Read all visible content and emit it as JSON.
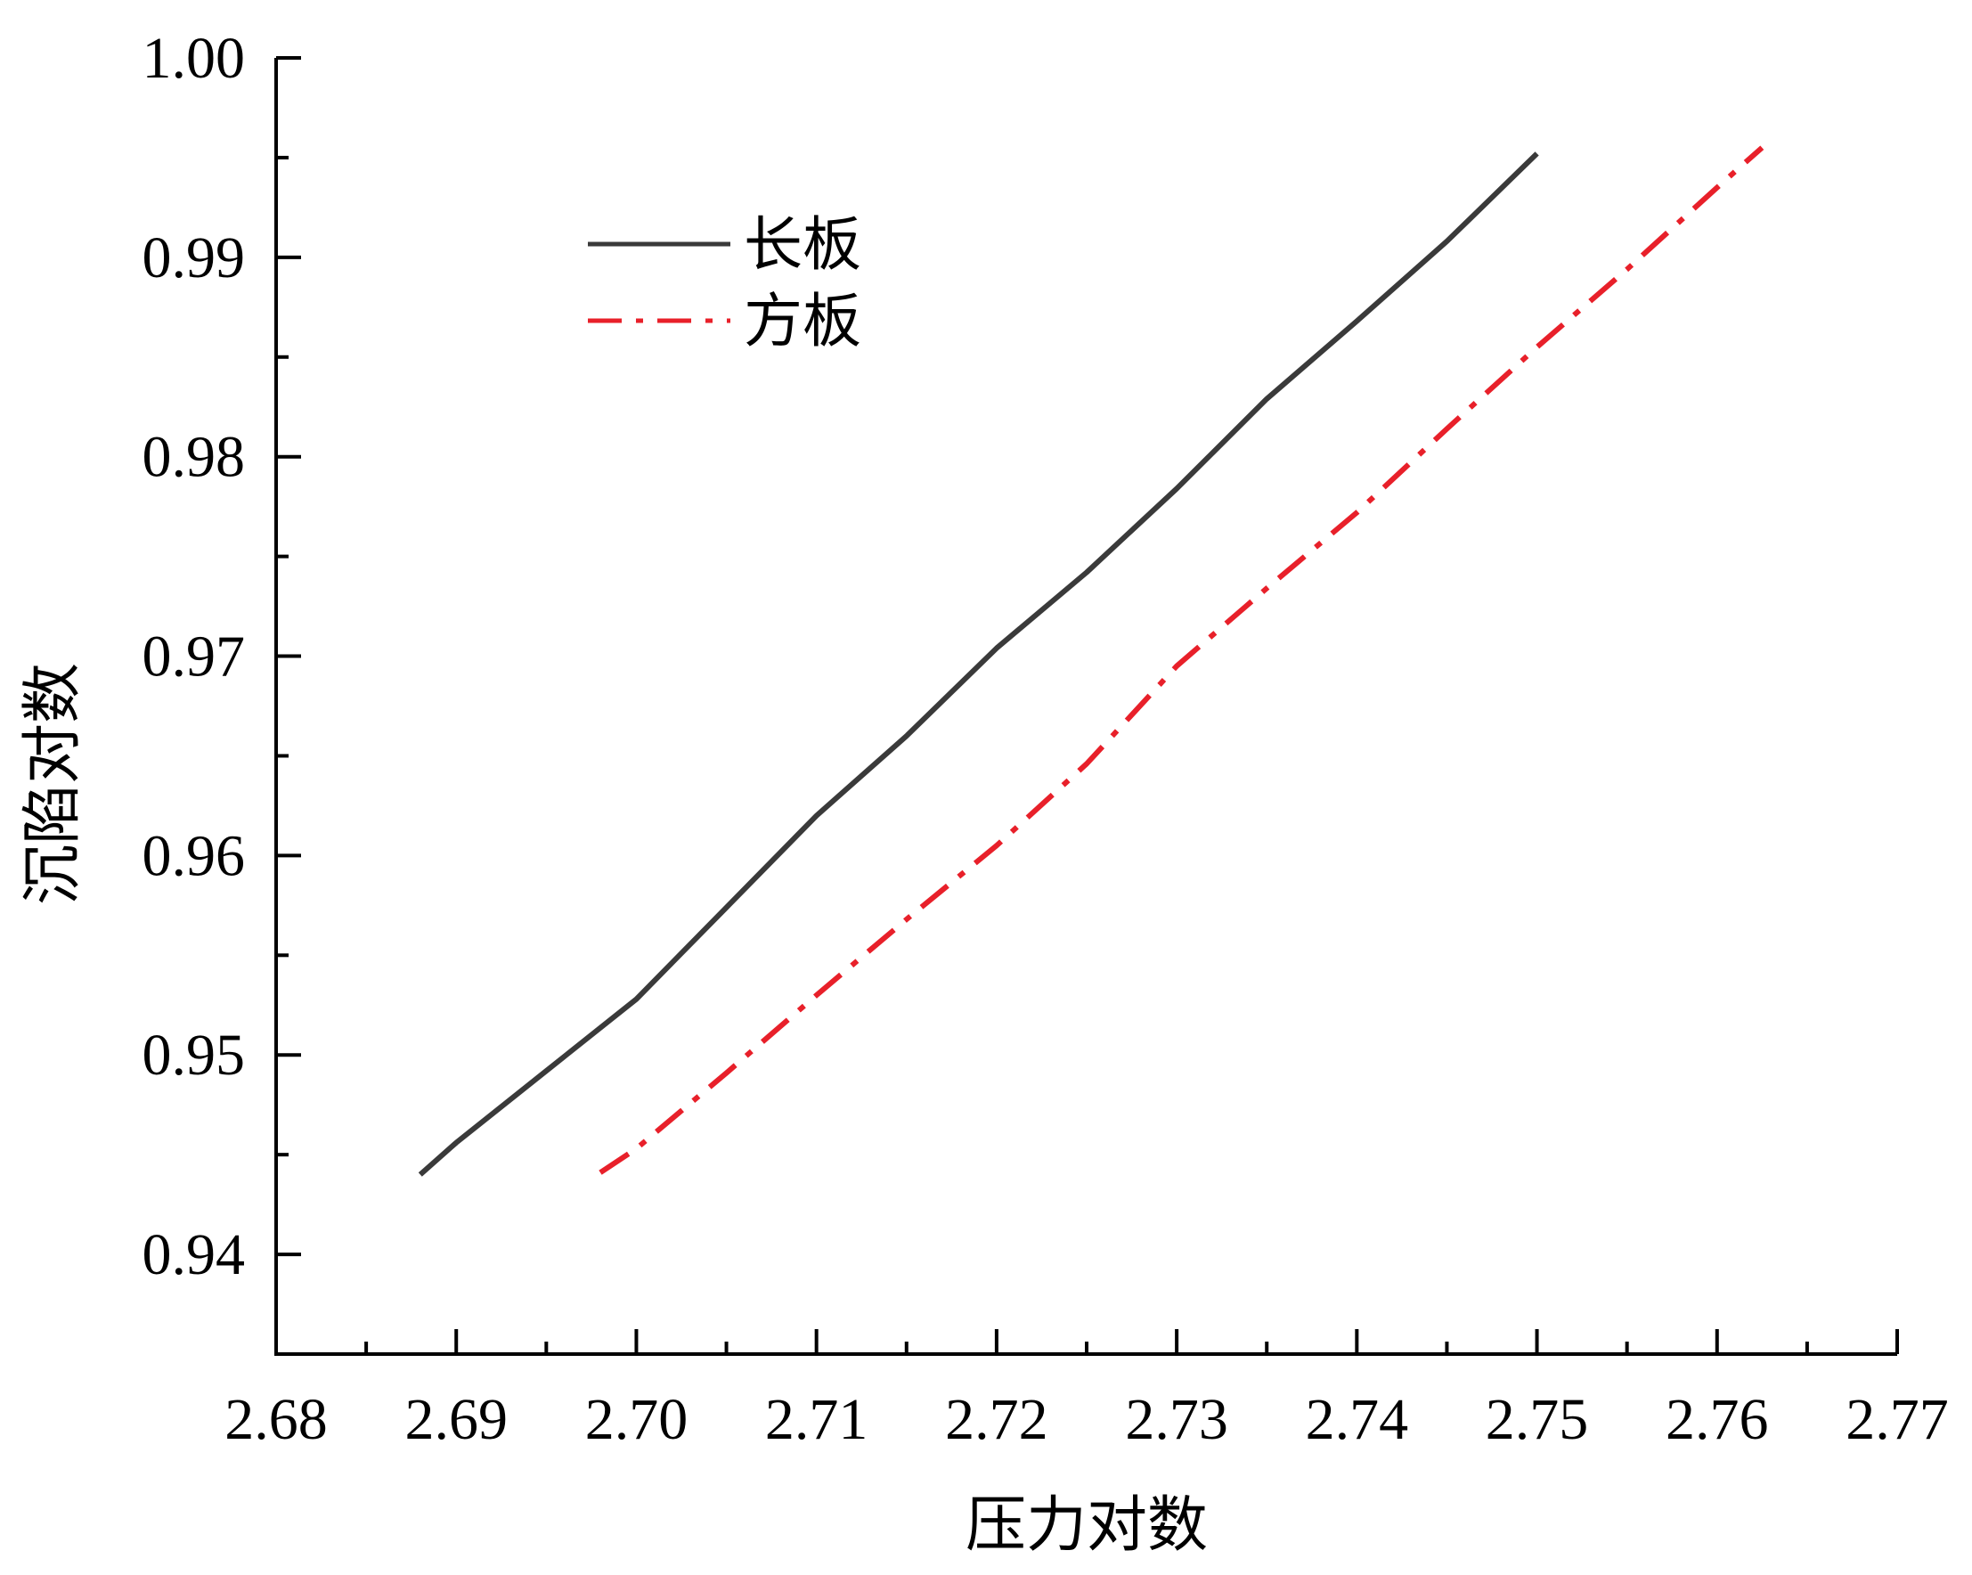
{
  "chart_data": {
    "type": "line",
    "title": "",
    "xlabel": "压力对数",
    "ylabel": "沉陷对数",
    "xlim": [
      2.68,
      2.77
    ],
    "ylim": [
      0.935,
      1.0
    ],
    "x_ticks": [
      "2.68",
      "2.69",
      "2.70",
      "2.71",
      "2.72",
      "2.73",
      "2.74",
      "2.75",
      "2.76",
      "2.77"
    ],
    "y_ticks": [
      "0.94",
      "0.95",
      "0.96",
      "0.97",
      "0.98",
      "0.99",
      "1.00"
    ],
    "grid": false,
    "legend_position": "top-left",
    "series": [
      {
        "name": "长板",
        "color": "#3a3a3a",
        "style": "solid",
        "x": [
          2.688,
          2.69,
          2.695,
          2.7,
          2.705,
          2.71,
          2.715,
          2.72,
          2.725,
          2.73,
          2.735,
          2.74,
          2.745,
          2.75
        ],
        "y": [
          0.944,
          0.9456,
          0.9492,
          0.9528,
          0.9574,
          0.962,
          0.966,
          0.9704,
          0.9742,
          0.9784,
          0.9829,
          0.9868,
          0.9908,
          0.9952
        ]
      },
      {
        "name": "方板",
        "color": "#e8202a",
        "style": "dashdot",
        "x": [
          2.698,
          2.7,
          2.705,
          2.71,
          2.715,
          2.72,
          2.725,
          2.73,
          2.735,
          2.74,
          2.745,
          2.75,
          2.755,
          2.76,
          2.7625
        ],
        "y": [
          0.9441,
          0.9453,
          0.9491,
          0.953,
          0.9568,
          0.9605,
          0.9646,
          0.9695,
          0.9734,
          0.9772,
          0.9814,
          0.9855,
          0.9894,
          0.9935,
          0.9955
        ]
      }
    ]
  }
}
